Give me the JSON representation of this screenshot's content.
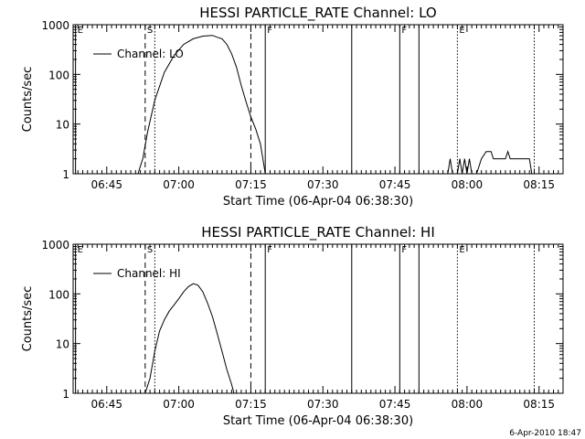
{
  "footer_timestamp": "6-Apr-2010 18:47",
  "chart_data": [
    {
      "type": "line",
      "title": "HESSI PARTICLE_RATE Channel: LO",
      "xlabel": "Start Time (06-Apr-04 06:38:30)",
      "ylabel": "Counts/sec",
      "legend": "Channel: LO",
      "legend_position": "top-left",
      "y_scale": "log",
      "ylim": [
        1,
        1000
      ],
      "xlim": [
        "06:38",
        "08:20"
      ],
      "x_ticks": [
        "06:45",
        "07:00",
        "07:15",
        "07:30",
        "07:45",
        "08:00",
        "08:15"
      ],
      "y_ticks": [
        "1",
        "10",
        "100",
        "1000"
      ],
      "vertical_markers": [
        {
          "time": "06:38:30",
          "style": "solid",
          "label": "E"
        },
        {
          "time": "06:53",
          "style": "dashed",
          "label": "S"
        },
        {
          "time": "06:55",
          "style": "dotted",
          "label": ""
        },
        {
          "time": "07:15",
          "style": "dashed",
          "label": ""
        },
        {
          "time": "07:18",
          "style": "solid",
          "label": "F"
        },
        {
          "time": "07:36",
          "style": "solid",
          "label": ""
        },
        {
          "time": "07:46",
          "style": "solid",
          "label": "F"
        },
        {
          "time": "07:50",
          "style": "solid",
          "label": ""
        },
        {
          "time": "07:58",
          "style": "dotted",
          "label": "E"
        },
        {
          "time": "08:14",
          "style": "dotted",
          "label": ""
        }
      ],
      "series": [
        {
          "name": "Channel: LO",
          "segments": [
            [
              [
                "06:51:30",
                1
              ],
              [
                "06:52:30",
                2
              ],
              [
                "06:53:30",
                7
              ],
              [
                "06:55",
                30
              ],
              [
                "06:57",
                110
              ],
              [
                "06:59",
                240
              ],
              [
                "07:01",
                400
              ],
              [
                "07:03",
                520
              ],
              [
                "07:05",
                590
              ],
              [
                "07:07",
                610
              ],
              [
                "07:08",
                560
              ],
              [
                "07:09",
                520
              ],
              [
                "07:10",
                400
              ],
              [
                "07:11",
                260
              ],
              [
                "07:12",
                140
              ],
              [
                "07:13",
                60
              ],
              [
                "07:14",
                28
              ],
              [
                "07:15",
                14
              ],
              [
                "07:16",
                8
              ],
              [
                "07:17",
                4
              ],
              [
                "07:17:30",
                2
              ],
              [
                "07:18",
                1
              ]
            ],
            [
              [
                "07:56",
                1
              ],
              [
                "07:56:30",
                2
              ],
              [
                "07:57",
                1
              ]
            ],
            [
              [
                "07:58",
                1
              ],
              [
                "07:58:30",
                2
              ],
              [
                "07:59",
                1
              ],
              [
                "07:59:30",
                2
              ],
              [
                "08:00",
                1
              ],
              [
                "08:00:30",
                2
              ],
              [
                "08:01",
                1
              ]
            ],
            [
              [
                "08:02",
                1
              ],
              [
                "08:03",
                2
              ],
              [
                "08:04",
                2.8
              ],
              [
                "08:05",
                2.8
              ],
              [
                "08:05:30",
                2
              ],
              [
                "08:08",
                2
              ],
              [
                "08:08:30",
                2.8
              ],
              [
                "08:09",
                2
              ],
              [
                "08:13",
                2
              ],
              [
                "08:13:30",
                1
              ]
            ]
          ]
        }
      ]
    },
    {
      "type": "line",
      "title": "HESSI PARTICLE_RATE Channel: HI",
      "xlabel": "Start Time (06-Apr-04 06:38:30)",
      "ylabel": "Counts/sec",
      "legend": "Channel: HI",
      "legend_position": "top-left",
      "y_scale": "log",
      "ylim": [
        1,
        1000
      ],
      "xlim": [
        "06:38",
        "08:20"
      ],
      "x_ticks": [
        "06:45",
        "07:00",
        "07:15",
        "07:30",
        "07:45",
        "08:00",
        "08:15"
      ],
      "y_ticks": [
        "1",
        "10",
        "100",
        "1000"
      ],
      "vertical_markers": [
        {
          "time": "06:38:30",
          "style": "solid",
          "label": "E"
        },
        {
          "time": "06:53",
          "style": "dashed",
          "label": "S"
        },
        {
          "time": "06:55",
          "style": "dotted",
          "label": ""
        },
        {
          "time": "07:15",
          "style": "dashed",
          "label": ""
        },
        {
          "time": "07:18",
          "style": "solid",
          "label": "F"
        },
        {
          "time": "07:36",
          "style": "solid",
          "label": ""
        },
        {
          "time": "07:46",
          "style": "solid",
          "label": "F"
        },
        {
          "time": "07:50",
          "style": "solid",
          "label": ""
        },
        {
          "time": "07:58",
          "style": "dotted",
          "label": "E"
        },
        {
          "time": "08:14",
          "style": "dotted",
          "label": ""
        }
      ],
      "series": [
        {
          "name": "Channel: HI",
          "segments": [
            [
              [
                "06:53",
                1
              ],
              [
                "06:54",
                2
              ],
              [
                "06:55",
                7
              ],
              [
                "06:56",
                18
              ],
              [
                "06:57",
                30
              ],
              [
                "06:58",
                45
              ],
              [
                "06:59",
                60
              ],
              [
                "07:00",
                80
              ],
              [
                "07:01",
                110
              ],
              [
                "07:02",
                140
              ],
              [
                "07:03",
                160
              ],
              [
                "07:04",
                150
              ],
              [
                "07:05",
                110
              ],
              [
                "07:06",
                65
              ],
              [
                "07:07",
                35
              ],
              [
                "07:08",
                16
              ],
              [
                "07:09",
                7
              ],
              [
                "07:10",
                3
              ],
              [
                "07:11",
                1.5
              ],
              [
                "07:11:30",
                1
              ]
            ]
          ]
        }
      ]
    }
  ]
}
